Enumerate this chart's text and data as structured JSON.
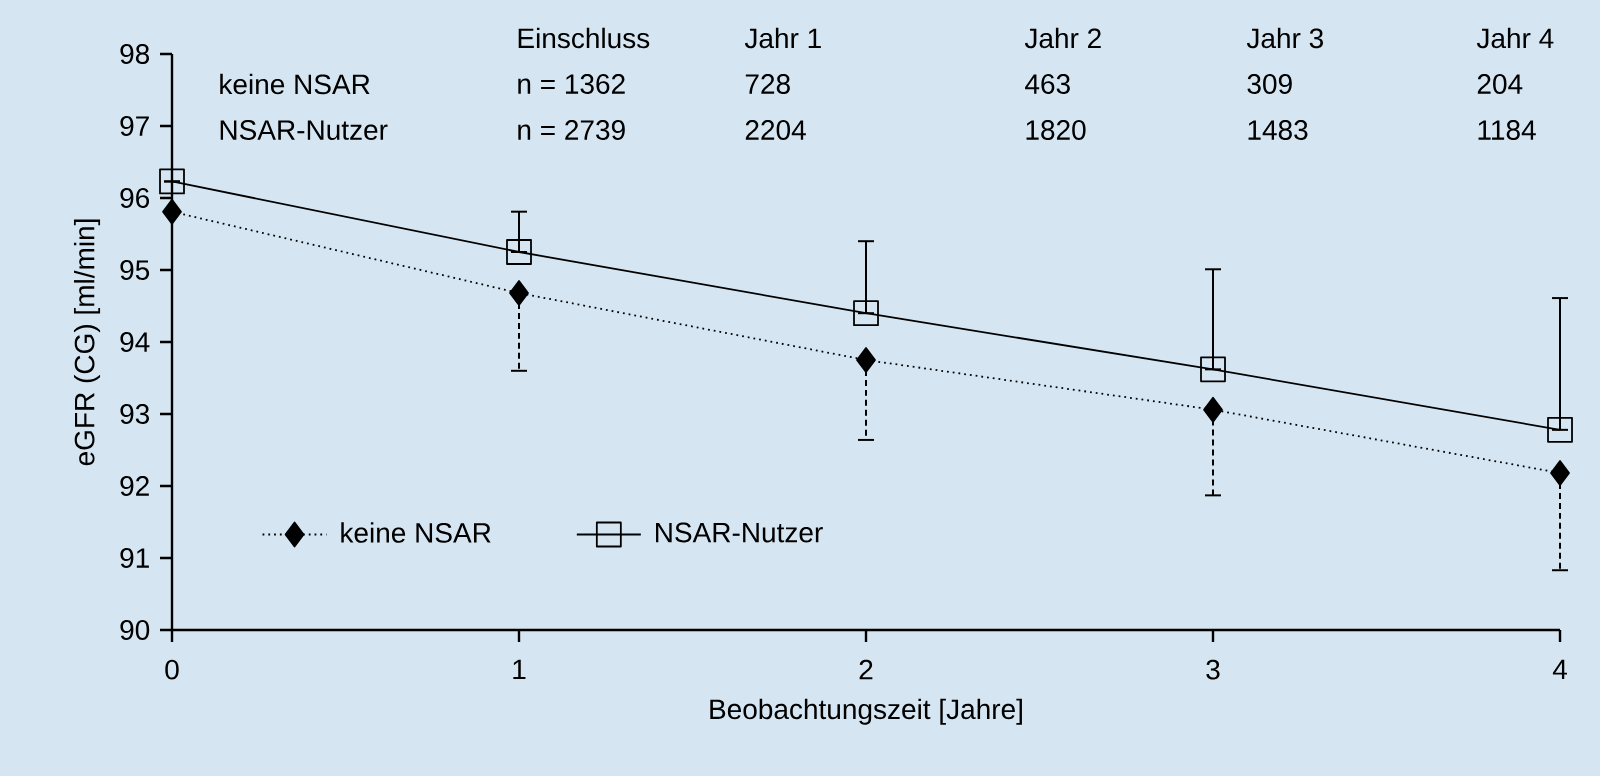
{
  "chart_data": {
    "type": "line",
    "xlabel": "Beobachtungszeit [Jahre]",
    "ylabel": "eGFR (CG) [ml/min]",
    "x": [
      0,
      1,
      2,
      3,
      4
    ],
    "series": [
      {
        "name": "keine NSAR",
        "color": "#000000",
        "values": [
          95.81,
          94.68,
          93.75,
          93.06,
          92.18
        ],
        "marker": "diamond",
        "line_style": "dotted",
        "errors": [
          null,
          [
            93.6,
            94.68
          ],
          [
            92.64,
            93.75
          ],
          [
            91.87,
            93.06
          ],
          [
            90.83,
            92.18
          ]
        ]
      },
      {
        "name": "NSAR-Nutzer",
        "color": "#000000",
        "values": [
          96.23,
          95.25,
          94.4,
          93.62,
          92.78
        ],
        "marker": "square",
        "line_style": "solid",
        "errors": [
          null,
          [
            95.25,
            95.81
          ],
          [
            94.4,
            95.4
          ],
          [
            93.62,
            95.01
          ],
          [
            92.78,
            94.61
          ]
        ]
      }
    ],
    "xlim": [
      0,
      4
    ],
    "xticks": [
      0,
      1,
      2,
      3,
      4
    ],
    "ylim": [
      90,
      98
    ],
    "yticks": [
      90,
      91,
      92,
      93,
      94,
      95,
      96,
      97,
      98
    ],
    "grid": false,
    "legend": "bottom left",
    "annotations": [
      "Einschluss",
      "Jahr 1",
      "Jahr 2",
      "Jahr 3",
      "Jahr 4",
      "keine NSAR",
      "n = 1362",
      "728",
      "463",
      "309",
      "204",
      "NSAR-Nutzer",
      "n = 2739",
      "2204",
      "1820",
      "1483",
      "1184"
    ]
  }
}
